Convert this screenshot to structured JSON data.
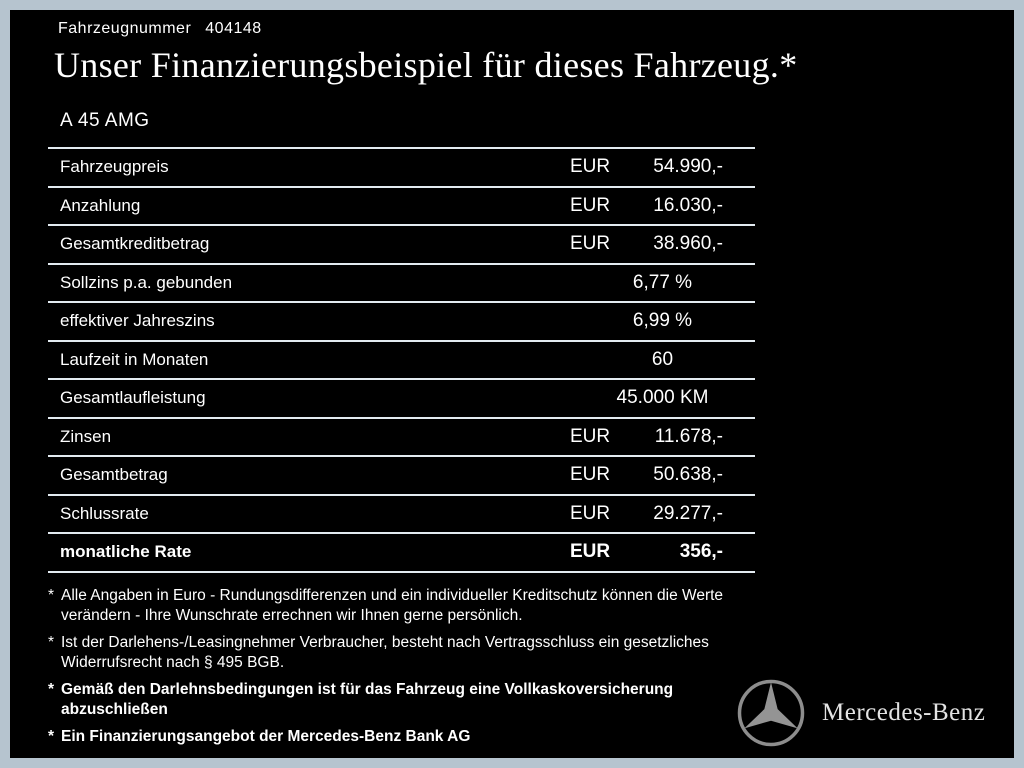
{
  "header": {
    "vehicle_number_label": "Fahrzeugnummer",
    "vehicle_number": "404148",
    "title": "Unser Finanzierungsbeispiel für dieses Fahrzeug.*",
    "model": "A 45 AMG"
  },
  "table": {
    "rows": [
      {
        "label": "Fahrzeugpreis",
        "currency": "EUR",
        "amount": "54.990,-",
        "bold": false
      },
      {
        "label": "Anzahlung",
        "currency": "EUR",
        "amount": "16.030,-",
        "bold": false
      },
      {
        "label": "Gesamtkreditbetrag",
        "currency": "EUR",
        "amount": "38.960,-",
        "bold": false
      },
      {
        "label": "Sollzins p.a. gebunden",
        "currency": "",
        "amount": "6,77 %",
        "bold": false
      },
      {
        "label": "effektiver Jahreszins",
        "currency": "",
        "amount": "6,99 %",
        "bold": false
      },
      {
        "label": "Laufzeit in Monaten",
        "currency": "",
        "amount": "60",
        "bold": false
      },
      {
        "label": "Gesamtlaufleistung",
        "currency": "",
        "amount": "45.000 KM",
        "bold": false
      },
      {
        "label": "Zinsen",
        "currency": "EUR",
        "amount": "11.678,-",
        "bold": false
      },
      {
        "label": "Gesamtbetrag",
        "currency": "EUR",
        "amount": "50.638,-",
        "bold": false
      },
      {
        "label": "Schlussrate",
        "currency": "EUR",
        "amount": "29.277,-",
        "bold": false
      },
      {
        "label": "monatliche Rate",
        "currency": "EUR",
        "amount": "356,-",
        "bold": true
      }
    ]
  },
  "footnotes": [
    {
      "marker": "*",
      "text": "Alle Angaben in Euro - Rundungsdifferenzen und ein individueller Kreditschutz können die Werte verändern - Ihre Wunschrate errechnen wir Ihnen gerne persönlich.",
      "bold": false
    },
    {
      "marker": "*",
      "text": "Ist der Darlehens-/Leasingnehmer Verbraucher, besteht nach Vertragsschluss ein gesetzliches Widerrufsrecht nach § 495 BGB.",
      "bold": false
    },
    {
      "marker": "*",
      "text": "Gemäß den Darlehnsbedingungen ist für das Fahrzeug eine Vollkaskoversicherung abzuschließen",
      "bold": true
    },
    {
      "marker": "*",
      "text": "Ein Finanzierungsangebot der Mercedes-Benz Bank AG",
      "bold": true
    }
  ],
  "brand": {
    "logo_icon": "mercedes-star-icon",
    "name": "Mercedes-Benz",
    "colors": {
      "frame": "#b6c4cf",
      "background": "#000000",
      "text": "#ffffff",
      "rule_lines": "#e3ebf1",
      "logo_gray": "#949494"
    }
  }
}
